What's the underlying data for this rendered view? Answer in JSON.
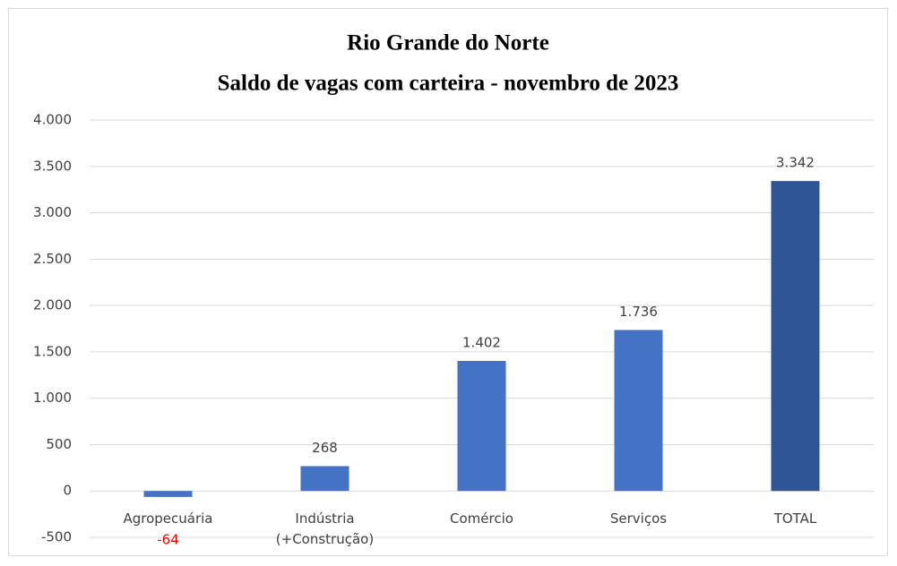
{
  "chart_data": {
    "type": "bar",
    "title": "Rio Grande do Norte",
    "subtitle": "Saldo de vagas com carteira - novembro de 2023",
    "categories": [
      "Agropecuária",
      "Indústria (+Construção)",
      "Comércio",
      "Serviços",
      "TOTAL"
    ],
    "values": [
      -64,
      268,
      1402,
      1736,
      3342
    ],
    "value_labels": [
      "-64",
      "268",
      "1.402",
      "1.736",
      "3.342"
    ],
    "colors": [
      "#4472c4",
      "#4472c4",
      "#4472c4",
      "#4472c4",
      "#2f5597"
    ],
    "negative_label_color": "#ff0000",
    "ylim": [
      -500,
      4000
    ],
    "yticks": [
      -500,
      0,
      500,
      {
        "value": 1000,
        "label": "1.000"
      },
      {
        "value": 1500,
        "label": "1.500"
      },
      {
        "value": 2000,
        "label": "2.000"
      },
      {
        "value": 2500,
        "label": "2.500"
      },
      {
        "value": 3000,
        "label": "3.000"
      },
      {
        "value": 3500,
        "label": "3.500"
      },
      {
        "value": 4000,
        "label": "4.000"
      }
    ],
    "grid": true
  }
}
